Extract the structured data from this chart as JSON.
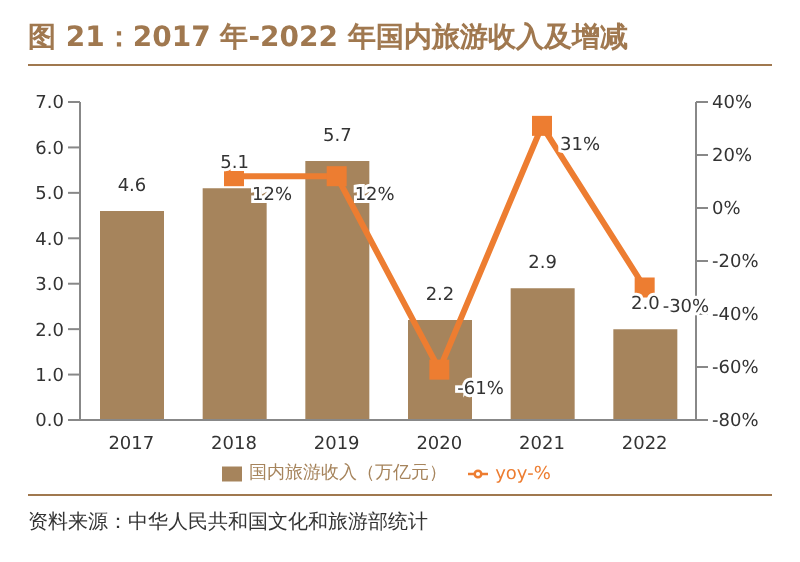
{
  "chart_data": {
    "type": "bar",
    "title": "图 21：2017 年-2022 年国内旅游收入及增减",
    "categories": [
      "2017",
      "2018",
      "2019",
      "2020",
      "2021",
      "2022"
    ],
    "series": [
      {
        "name": "国内旅游收入（万亿元）",
        "color": "#a6845c",
        "values": [
          4.6,
          5.1,
          5.7,
          2.2,
          2.9,
          2.0
        ],
        "value_labels": [
          "4.6",
          "5.1",
          "5.7",
          "2.2",
          "2.9",
          "2.0"
        ]
      },
      {
        "name": "yoy-%",
        "type": "line",
        "axis": "y2",
        "color": "#ed7d31",
        "marker": "square",
        "values": [
          null,
          12,
          12,
          -61,
          31,
          -30
        ],
        "value_labels": [
          null,
          "12%",
          "12%",
          "-61%",
          "31%",
          "-30%"
        ]
      }
    ],
    "ylim": [
      0,
      7
    ],
    "yticks": [
      {
        "value": 0,
        "label": "0.0"
      },
      {
        "value": 1,
        "label": "1.0"
      },
      {
        "value": 2,
        "label": "2.0"
      },
      {
        "value": 3,
        "label": "3.0"
      },
      {
        "value": 4,
        "label": "4.0"
      },
      {
        "value": 5,
        "label": "5.0"
      },
      {
        "value": 6,
        "label": "6.0"
      },
      {
        "value": 7,
        "label": "7.0"
      }
    ],
    "y2lim": [
      -80,
      40
    ],
    "y2ticks": [
      {
        "value": -80,
        "label": "-80%"
      },
      {
        "value": -60,
        "label": "-60%"
      },
      {
        "value": -40,
        "label": "-40%"
      },
      {
        "value": -20,
        "label": "-20%"
      },
      {
        "value": 0,
        "label": "0%"
      },
      {
        "value": 20,
        "label": "20%"
      },
      {
        "value": 40,
        "label": "40%"
      }
    ],
    "grid": false,
    "legend": "bottom",
    "annotations": [
      "资料来源：中华人民共和国文化和旅游部统计"
    ]
  }
}
